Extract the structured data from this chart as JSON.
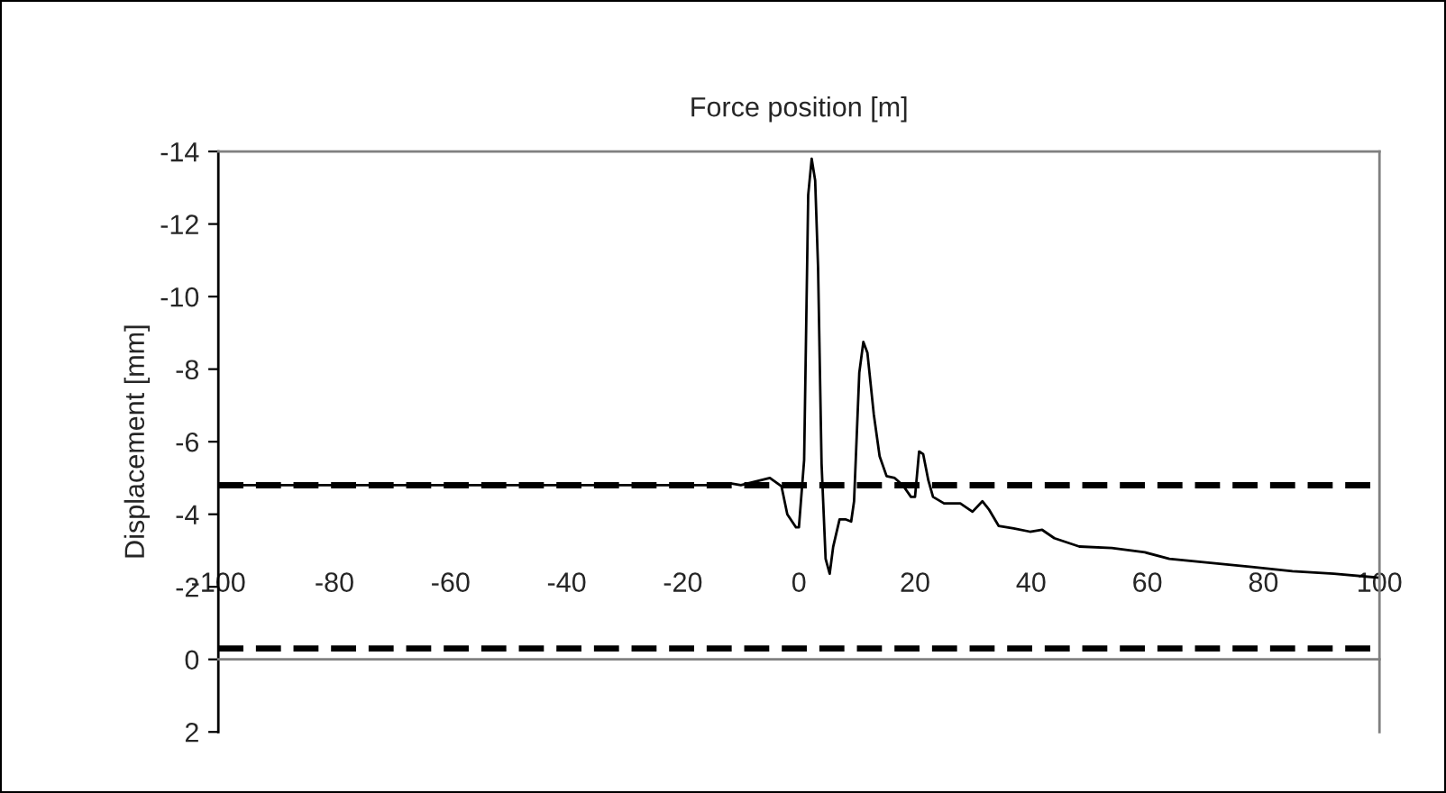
{
  "chart_data": {
    "type": "line",
    "xlabel": "Force position [m]",
    "ylabel": "Displacement [mm]",
    "xlim": [
      -100,
      100
    ],
    "xticks": [
      -100,
      -80,
      -60,
      -40,
      -20,
      0,
      20,
      40,
      60,
      80,
      100
    ],
    "ylim": [
      2,
      -14
    ],
    "yticks": [
      -14,
      -12,
      -10,
      -8,
      -6,
      -4,
      -2,
      0,
      2
    ],
    "grid": false,
    "ref_lines": [
      {
        "axis": "y",
        "value": -4.8,
        "color": "#000000",
        "line_style": "dashed"
      },
      {
        "axis": "y",
        "value": -0.3,
        "color": "#000000",
        "line_style": "dashed"
      }
    ],
    "series": [
      {
        "color": "#000000",
        "x": [
          -100,
          -60,
          -20,
          -13,
          -11.8,
          -10,
          -5,
          -3,
          -2,
          -0.5,
          0,
          0.9,
          1.6,
          2.2,
          2.8,
          3.3,
          3.9,
          4.6,
          5.3,
          5.9,
          7.0,
          8.0,
          9.0,
          9.5,
          10.4,
          11.1,
          11.8,
          12.9,
          13.9,
          15.1,
          16.5,
          17.9,
          19.3,
          20.0,
          20.7,
          21.4,
          22.3,
          23.1,
          25,
          27.8,
          29.9,
          31.6,
          32.7,
          34.4,
          37,
          39.8,
          41.9,
          44.0,
          48.3,
          53.9,
          59.6,
          63.8,
          70.9,
          78.0,
          85.0,
          92.1,
          100
        ],
        "values": [
          -4.8,
          -4.8,
          -4.8,
          -4.8,
          -4.85,
          -4.8,
          -5.0,
          -4.77,
          -4.0,
          -3.64,
          -3.64,
          -5.5,
          -12.8,
          -13.8,
          -13.2,
          -10.8,
          -5.4,
          -2.77,
          -2.36,
          -3.1,
          -3.86,
          -3.86,
          -3.8,
          -4.36,
          -7.9,
          -8.75,
          -8.45,
          -6.75,
          -5.6,
          -5.05,
          -5.0,
          -4.8,
          -4.48,
          -4.48,
          -5.73,
          -5.66,
          -4.93,
          -4.48,
          -4.3,
          -4.3,
          -4.07,
          -4.36,
          -4.14,
          -3.68,
          -3.61,
          -3.52,
          -3.57,
          -3.34,
          -3.11,
          -3.07,
          -2.95,
          -2.77,
          -2.66,
          -2.55,
          -2.43,
          -2.36,
          -2.25
        ]
      }
    ]
  }
}
